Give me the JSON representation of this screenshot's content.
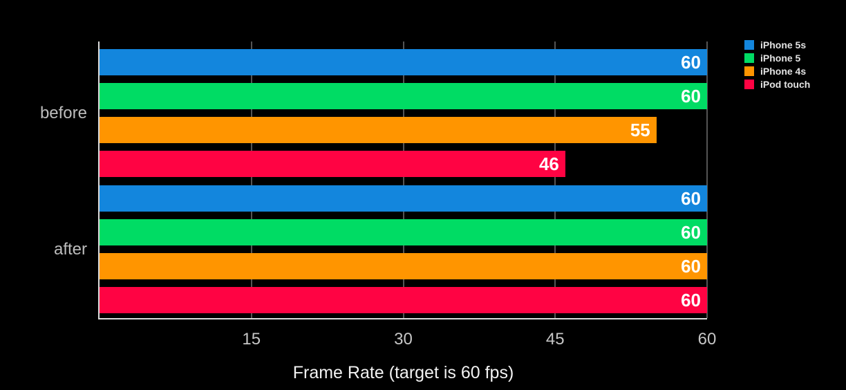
{
  "chart_data": {
    "type": "bar",
    "orientation": "horizontal",
    "categories": [
      "before",
      "after"
    ],
    "series": [
      {
        "name": "iPhone 5s",
        "color": "#1386DD",
        "values": [
          60,
          60
        ]
      },
      {
        "name": "iPhone 5",
        "color": "#00DC64",
        "values": [
          60,
          60
        ]
      },
      {
        "name": "iPhone 4s",
        "color": "#FF9500",
        "values": [
          55,
          60
        ]
      },
      {
        "name": "iPod touch",
        "color": "#FF0343",
        "values": [
          46,
          60
        ]
      }
    ],
    "xlabel": "Frame Rate (target is 60 fps)",
    "xticks": [
      "15",
      "30",
      "45",
      "60"
    ],
    "xlim": [
      0,
      60
    ],
    "grid": true,
    "legend_position": "top-right",
    "bar_value_labels": [
      [
        "60",
        "60",
        "55",
        "46"
      ],
      [
        "60",
        "60",
        "60",
        "60"
      ]
    ]
  },
  "colors": {
    "background": "#000000",
    "axis_line": "#DCDCDC",
    "gridline": "#555555",
    "tick_label": "#C6C6C6",
    "category_label": "#BDBDBD",
    "bar_value_label": "#FFFFFF",
    "legend_text": "#E3E3E3",
    "xlabel_text": "#F2F2F2"
  }
}
